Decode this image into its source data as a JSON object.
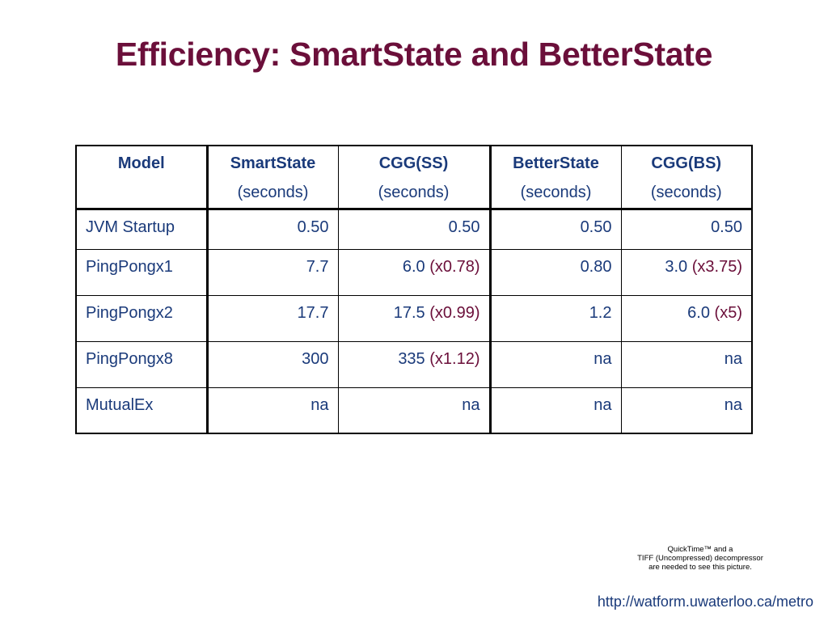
{
  "title": "Efficiency: SmartState and BetterState",
  "table": {
    "headers": [
      {
        "name": "Model",
        "unit": ""
      },
      {
        "name": "SmartState",
        "unit": "(seconds)"
      },
      {
        "name": "CGG(SS)",
        "unit": "(seconds)"
      },
      {
        "name": "BetterState",
        "unit": "(seconds)"
      },
      {
        "name": "CGG(BS)",
        "unit": "(seconds)"
      }
    ],
    "rows": [
      {
        "model": "JVM Startup",
        "ss": "0.50",
        "cgg_ss": "0.50",
        "cgg_ss_ratio": "",
        "bs": "0.50",
        "cgg_bs": "0.50",
        "cgg_bs_ratio": ""
      },
      {
        "model": "PingPongx1",
        "ss": "7.7",
        "cgg_ss": "6.0",
        "cgg_ss_ratio": "(x0.78)",
        "bs": "0.80",
        "cgg_bs": "3.0",
        "cgg_bs_ratio": "(x3.75)"
      },
      {
        "model": "PingPongx2",
        "ss": "17.7",
        "cgg_ss": "17.5",
        "cgg_ss_ratio": "(x0.99)",
        "bs": "1.2",
        "cgg_bs": "6.0",
        "cgg_bs_ratio": "(x5)"
      },
      {
        "model": "PingPongx8",
        "ss": "300",
        "cgg_ss": "335",
        "cgg_ss_ratio": "(x1.12)",
        "bs": "na",
        "cgg_bs": "na",
        "cgg_bs_ratio": ""
      },
      {
        "model": "MutualEx",
        "ss": "na",
        "cgg_ss": "na",
        "cgg_ss_ratio": "",
        "bs": "na",
        "cgg_bs": "na",
        "cgg_bs_ratio": ""
      }
    ]
  },
  "quicktime_notice": {
    "line1": "QuickTime™ and a",
    "line2": "TIFF (Uncompressed) decompressor",
    "line3": "are needed to see this picture."
  },
  "footer_url": "http://watform.uwaterloo.ca/metro"
}
